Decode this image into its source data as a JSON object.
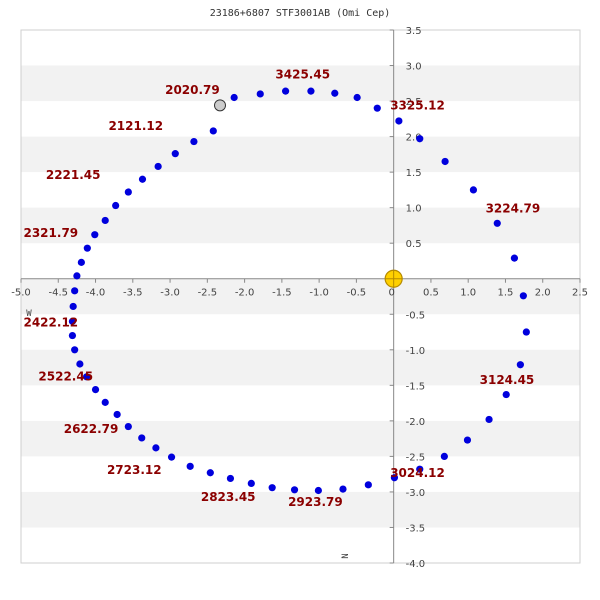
{
  "chart_data": {
    "type": "scatter",
    "title": "23186+6807 STF3001AB (Omi Cep)",
    "xlabel": "W",
    "ylabel": "N",
    "xlim": [
      -5.0,
      2.5
    ],
    "ylim": [
      -4.0,
      3.5
    ],
    "x_ticks": [
      "-5.0",
      "-4.5",
      "-4.0",
      "-3.5",
      "-3.0",
      "-2.5",
      "-2.0",
      "-1.5",
      "-1.0",
      "-0.5",
      "0",
      "0.5",
      "1.0",
      "1.5",
      "2.0",
      "2.5"
    ],
    "y_ticks": [
      "3.5",
      "3.0",
      "2.5",
      "2.0",
      "1.5",
      "1.0",
      "0.5",
      "-0.5",
      "-1.0",
      "-1.5",
      "-2.0",
      "-2.5",
      "-3.0",
      "-3.5",
      "-4.0"
    ],
    "grid": "horizontal alternating bands",
    "colors": {
      "orbit_points": "#0000dd",
      "primary_star": "#ffd000",
      "current_position": "#cccccc",
      "epoch_labels": "#8b0000"
    },
    "primary": {
      "x": 0,
      "y": 0
    },
    "current_position": {
      "x": -2.33,
      "y": 2.44
    },
    "series": [
      {
        "x": [
          -2.14,
          -1.79,
          -1.45,
          -1.11,
          -0.79,
          -0.49,
          -0.22,
          0.07,
          0.35,
          0.69,
          1.07,
          1.39,
          1.62,
          1.74,
          1.78,
          1.7,
          1.51,
          1.28,
          0.99,
          0.68,
          0.35,
          0.01,
          -0.34,
          -0.68,
          -1.01,
          -1.33,
          -1.63,
          -1.91,
          -2.19,
          -2.46,
          -2.73,
          -2.98,
          -3.19,
          -3.38,
          -3.56,
          -3.71,
          -3.87,
          -4.0,
          -4.12,
          -4.21,
          -4.28,
          -4.31,
          -4.31,
          -4.3,
          -4.28,
          -4.25,
          -4.19,
          -4.11,
          -4.01,
          -3.87,
          -3.73,
          -3.56,
          -3.37,
          -3.16,
          -2.93,
          -2.68,
          -2.42
        ],
        "y": [
          2.55,
          2.6,
          2.64,
          2.64,
          2.61,
          2.55,
          2.4,
          2.22,
          1.97,
          1.65,
          1.25,
          0.78,
          0.29,
          -0.24,
          -0.75,
          -1.21,
          -1.63,
          -1.98,
          -2.27,
          -2.5,
          -2.68,
          -2.8,
          -2.9,
          -2.96,
          -2.98,
          -2.97,
          -2.94,
          -2.88,
          -2.81,
          -2.73,
          -2.64,
          -2.51,
          -2.38,
          -2.24,
          -2.08,
          -1.91,
          -1.74,
          -1.56,
          -1.38,
          -1.2,
          -1.0,
          -0.8,
          -0.6,
          -0.39,
          -0.17,
          0.04,
          0.23,
          0.43,
          0.62,
          0.82,
          1.03,
          1.22,
          1.4,
          1.58,
          1.76,
          1.93,
          2.08
        ]
      }
    ],
    "epoch_labels": [
      {
        "text": "2020.79",
        "x": -2.7,
        "y": 2.6
      },
      {
        "text": "3425.45",
        "x": -1.22,
        "y": 2.82
      },
      {
        "text": "3325.12",
        "x": 0.32,
        "y": 2.38
      },
      {
        "text": "2121.12",
        "x": -3.46,
        "y": 2.09
      },
      {
        "text": "2221.45",
        "x": -4.3,
        "y": 1.4
      },
      {
        "text": "3224.79",
        "x": 1.6,
        "y": 0.93
      },
      {
        "text": "2321.79",
        "x": -4.6,
        "y": 0.59
      },
      {
        "text": "2422.12",
        "x": -4.6,
        "y": -0.67
      },
      {
        "text": "3124.45",
        "x": 1.52,
        "y": -1.48
      },
      {
        "text": "2522.45",
        "x": -4.4,
        "y": -1.43
      },
      {
        "text": "2622.79",
        "x": -4.06,
        "y": -2.17
      },
      {
        "text": "2723.12",
        "x": -3.48,
        "y": -2.75
      },
      {
        "text": "3024.12",
        "x": 0.32,
        "y": -2.79
      },
      {
        "text": "2823.45",
        "x": -2.22,
        "y": -3.13
      },
      {
        "text": "2923.79",
        "x": -1.05,
        "y": -3.2
      }
    ]
  }
}
